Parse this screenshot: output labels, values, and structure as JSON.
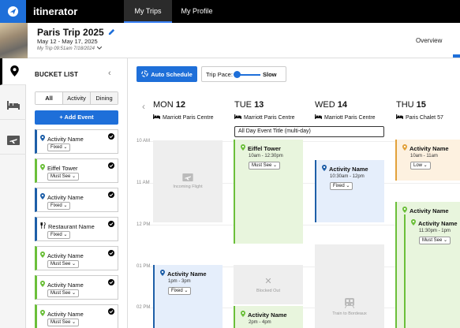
{
  "app": {
    "brand": "itinerator",
    "accent": "#1e6fd9"
  },
  "nav": {
    "tabs": [
      {
        "label": "My Trips",
        "active": true
      },
      {
        "label": "My Profile",
        "active": false
      }
    ]
  },
  "trip": {
    "title": "Paris Trip 2025",
    "dates": "May 12 - May 17, 2025",
    "meta": "My Trip 09:51am 7/18/2024",
    "overview_label": "Overview"
  },
  "rail": {
    "icons": [
      "map-pin-icon",
      "bed-icon",
      "plane-icon"
    ]
  },
  "bucket": {
    "title": "BUCKET LIST",
    "tabs": [
      "All",
      "Activity",
      "Dining"
    ],
    "add_label": "+ Add Event",
    "items": [
      {
        "name": "Activity Name",
        "tag": "Fixed",
        "color": "blue",
        "icon": "map-pin-icon"
      },
      {
        "name": "Eiffel Tower",
        "tag": "Must See",
        "color": "green",
        "icon": "map-pin-icon"
      },
      {
        "name": "Activity Name",
        "tag": "Fixed",
        "color": "blue",
        "icon": "map-pin-icon"
      },
      {
        "name": "Restaurant Name",
        "tag": "Fixed",
        "color": "blue",
        "icon": "fork-knife-icon"
      },
      {
        "name": "Activity Name",
        "tag": "Must See",
        "color": "green",
        "icon": "map-pin-icon"
      },
      {
        "name": "Activity Name",
        "tag": "Must See",
        "color": "green",
        "icon": "map-pin-icon"
      },
      {
        "name": "Activity Name",
        "tag": "Must See",
        "color": "green",
        "icon": "map-pin-icon"
      }
    ]
  },
  "toolbar": {
    "auto_label": "Auto Schedule",
    "pace_label": "Trip Pace:",
    "pace_value": "Slow"
  },
  "calendar": {
    "days": [
      {
        "dow": "MON",
        "num": "12",
        "hotel": "Marriott Paris Centre"
      },
      {
        "dow": "TUE",
        "num": "13",
        "hotel": "Marriott Paris Centre"
      },
      {
        "dow": "WED",
        "num": "14",
        "hotel": "Marriott Paris Centre"
      },
      {
        "dow": "THU",
        "num": "15",
        "hotel": "Paris Chalet 57"
      }
    ],
    "times": [
      "10 AM",
      "11 AM",
      "12 PM",
      "01 PM",
      "02 PM"
    ],
    "all_day": "All Day Event Title (multi-day)",
    "events": {
      "mon_flight": "Incoming Flight",
      "mon_act": {
        "name": "Activity Name",
        "time": "1pm - 3pm",
        "tag": "Fixed"
      },
      "tue_eiffel": {
        "name": "Eiffel Tower",
        "time": "10am - 12:30pm",
        "tag": "Must See"
      },
      "tue_blocked": "Blocked Out",
      "tue_act": {
        "name": "Activity Name",
        "time": "2pm - 4pm"
      },
      "wed_act": {
        "name": "Activity Name",
        "time": "10:30am - 12pm",
        "tag": "Fixed"
      },
      "wed_train": "Train to Bordeaux",
      "thu_act1": {
        "name": "Activity Name",
        "time": "10am - 11am",
        "tag": "Low"
      },
      "thu_act2": {
        "name": "Activity Name"
      },
      "thu_act3": {
        "name": "Activity Name",
        "time": "11:30pm - 1pm",
        "tag": "Must See"
      }
    }
  }
}
